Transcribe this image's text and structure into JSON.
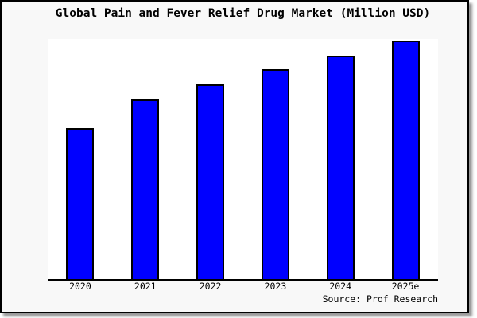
{
  "chart_data": {
    "type": "bar",
    "title": "Global Pain and Fever Relief Drug Market (Million USD)",
    "categories": [
      "2020",
      "2021",
      "2022",
      "2023",
      "2024",
      "2025e"
    ],
    "values": [
      63.3,
      75.3,
      81.7,
      88.0,
      93.7,
      100.0
    ],
    "values_note": "No y-axis scale is drawn in the chart; values are relative bar heights indexed to 2025e = 100",
    "xlabel": "",
    "ylabel": "",
    "ylim": [
      0,
      100.7
    ],
    "grid": false,
    "legend": false,
    "source_label": "Source: Prof Research",
    "colors": {
      "bar_fill": "#0000ff",
      "bar_border": "#000000",
      "plot_bg": "#ffffff",
      "panel_bg": "#f8f8f8",
      "frame_border": "#000000",
      "text": "#000000"
    }
  }
}
